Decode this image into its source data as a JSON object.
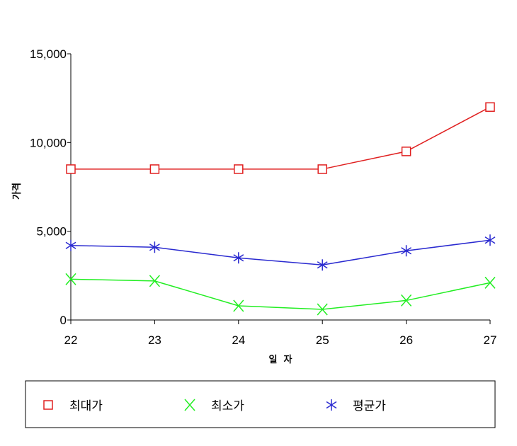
{
  "chart_data": {
    "type": "line",
    "x": [
      "22",
      "23",
      "24",
      "25",
      "26",
      "27"
    ],
    "xlabel": "일  자",
    "ylabel": "가격",
    "ylim": [
      0,
      15000
    ],
    "yticks": [
      "0",
      "5,000",
      "10,000",
      "15,000"
    ],
    "ytick_values": [
      0,
      5000,
      10000,
      15000
    ],
    "grid": false,
    "legend": "bottom",
    "series": [
      {
        "name": "최대가",
        "values": [
          8500,
          8500,
          8500,
          8500,
          9500,
          12000
        ],
        "color": "#e02020",
        "marker": "square"
      },
      {
        "name": "최소가",
        "values": [
          2300,
          2200,
          800,
          600,
          1100,
          2100
        ],
        "color": "#22ee22",
        "marker": "x"
      },
      {
        "name": "평균가",
        "values": [
          4200,
          4100,
          3500,
          3100,
          3900,
          4500
        ],
        "color": "#2a2ad0",
        "marker": "asterisk"
      }
    ]
  }
}
